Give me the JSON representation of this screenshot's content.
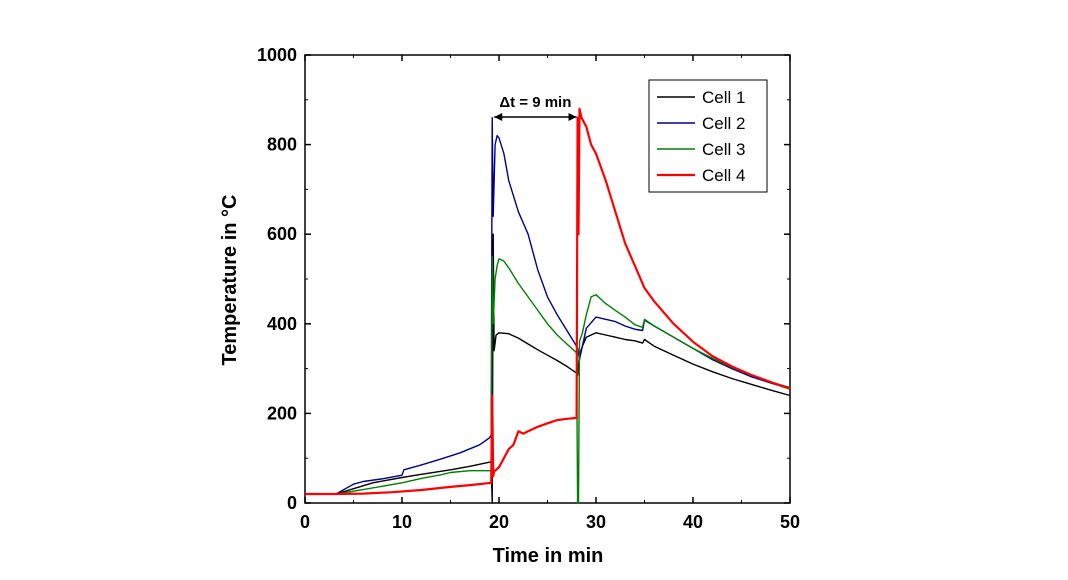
{
  "chart_data": {
    "type": "line",
    "title": "",
    "xlabel": "Time in min",
    "ylabel": "Temperature in °C",
    "xlim": [
      0,
      50
    ],
    "ylim": [
      0,
      1000
    ],
    "xticks": [
      0,
      10,
      20,
      30,
      40,
      50
    ],
    "yticks": [
      0,
      200,
      400,
      600,
      800,
      1000
    ],
    "xtick_labels": [
      "0",
      "10",
      "20",
      "30",
      "40",
      "50"
    ],
    "ytick_labels": [
      "0",
      "200",
      "400",
      "600",
      "800",
      "1000"
    ],
    "grid": false,
    "legend": {
      "position": "top-right",
      "entries": [
        "Cell 1",
        "Cell 2",
        "Cell 3",
        "Cell 4"
      ]
    },
    "annotation": {
      "text": "Δt = 9 min",
      "from_x": 19.3,
      "to_x": 28.2,
      "y": 855
    },
    "series": [
      {
        "name": "Cell 1",
        "color": "#000000",
        "x": [
          0,
          3.2,
          5,
          7,
          10,
          12,
          15,
          17,
          19.2,
          19.3,
          19.4,
          19.5,
          19.7,
          20,
          21,
          22,
          23,
          24,
          25,
          26,
          27,
          28,
          28.1,
          28.3,
          28.6,
          29,
          30,
          31,
          32,
          33,
          34,
          34.8,
          35,
          36,
          38,
          40,
          42,
          44,
          46,
          48,
          50
        ],
        "y": [
          20,
          20,
          32,
          45,
          57,
          64,
          74,
          82,
          92,
          0,
          600,
          340,
          375,
          380,
          378,
          368,
          355,
          342,
          330,
          318,
          305,
          290,
          285,
          330,
          350,
          370,
          380,
          375,
          370,
          365,
          362,
          357,
          365,
          350,
          330,
          310,
          293,
          278,
          265,
          252,
          240
        ]
      },
      {
        "name": "Cell 2",
        "color": "#00008b",
        "x": [
          0,
          3.2,
          5,
          6,
          8,
          10,
          10.2,
          12,
          14,
          16,
          18,
          19,
          19.2,
          19.3,
          19.4,
          19.6,
          19.8,
          20,
          20.5,
          21,
          22,
          23,
          24,
          25,
          26,
          27,
          28,
          28.1,
          28.3,
          28.6,
          29,
          30,
          31,
          32,
          33,
          34,
          34.8,
          35,
          36,
          38,
          40,
          42,
          44,
          46,
          48,
          50
        ],
        "y": [
          20,
          20,
          42,
          48,
          54,
          62,
          74,
          85,
          98,
          112,
          130,
          145,
          152,
          860,
          640,
          800,
          820,
          815,
          780,
          720,
          650,
          600,
          520,
          460,
          420,
          385,
          350,
          345,
          320,
          350,
          390,
          415,
          410,
          405,
          395,
          388,
          385,
          408,
          395,
          370,
          345,
          320,
          300,
          282,
          268,
          255
        ]
      },
      {
        "name": "Cell 3",
        "color": "#008000",
        "x": [
          0,
          3.2,
          6,
          10,
          12,
          14,
          15,
          17,
          19.2,
          19.3,
          19.4,
          19.6,
          19.8,
          20,
          20.5,
          21,
          22,
          23,
          24,
          25,
          26,
          27,
          28,
          28.1,
          28.2,
          28.3,
          28.6,
          29,
          29.5,
          30,
          31,
          32,
          33,
          34,
          34.8,
          35,
          36,
          38,
          40,
          42,
          44,
          46,
          48,
          50
        ],
        "y": [
          20,
          20,
          30,
          45,
          55,
          63,
          68,
          72,
          72,
          550,
          400,
          500,
          530,
          545,
          540,
          525,
          490,
          460,
          430,
          400,
          375,
          355,
          335,
          0,
          0,
          360,
          380,
          420,
          460,
          465,
          445,
          430,
          415,
          398,
          392,
          410,
          395,
          370,
          345,
          323,
          303,
          285,
          270,
          258
        ]
      },
      {
        "name": "Cell 4",
        "color": "#ff0000",
        "x": [
          0,
          3,
          6,
          9,
          12,
          15,
          17,
          19.2,
          19.3,
          19.4,
          19.5,
          20,
          20.5,
          21,
          21.5,
          22,
          22.5,
          23,
          24,
          25,
          26,
          27,
          28,
          28.1,
          28.2,
          28.3,
          28.5,
          29,
          29.5,
          30,
          31,
          32,
          33,
          34,
          35,
          36,
          38,
          40,
          42,
          44,
          46,
          48,
          50
        ],
        "y": [
          20,
          20,
          21,
          24,
          29,
          36,
          40,
          45,
          240,
          60,
          70,
          80,
          100,
          120,
          130,
          160,
          155,
          160,
          170,
          178,
          185,
          188,
          190,
          860,
          600,
          880,
          860,
          840,
          800,
          780,
          720,
          650,
          580,
          530,
          480,
          450,
          400,
          360,
          328,
          305,
          286,
          270,
          255
        ]
      }
    ]
  }
}
